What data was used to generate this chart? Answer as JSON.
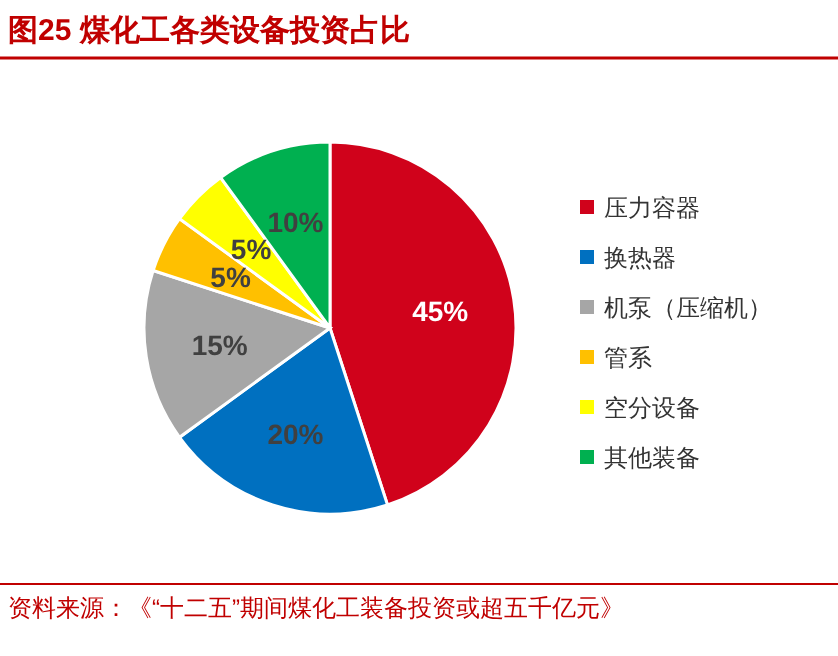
{
  "chart_data": {
    "type": "pie",
    "title": "图25  煤化工各类设备投资占比",
    "categories": [
      "压力容器",
      "换热器",
      "机泵（压缩机）",
      "管系",
      "空分设备",
      "其他装备"
    ],
    "values": [
      45,
      20,
      15,
      5,
      5,
      10
    ],
    "colors": [
      "#d0021b",
      "#0070c0",
      "#a6a6a6",
      "#ffc000",
      "#ffff00",
      "#00b050"
    ],
    "value_labels": [
      "45%",
      "20%",
      "15%",
      "5%",
      "5%",
      "10%"
    ],
    "legend": "right",
    "annotations": [
      "资料来源：《“十二五”期间煤化工装备投资或超五千亿元》"
    ]
  }
}
